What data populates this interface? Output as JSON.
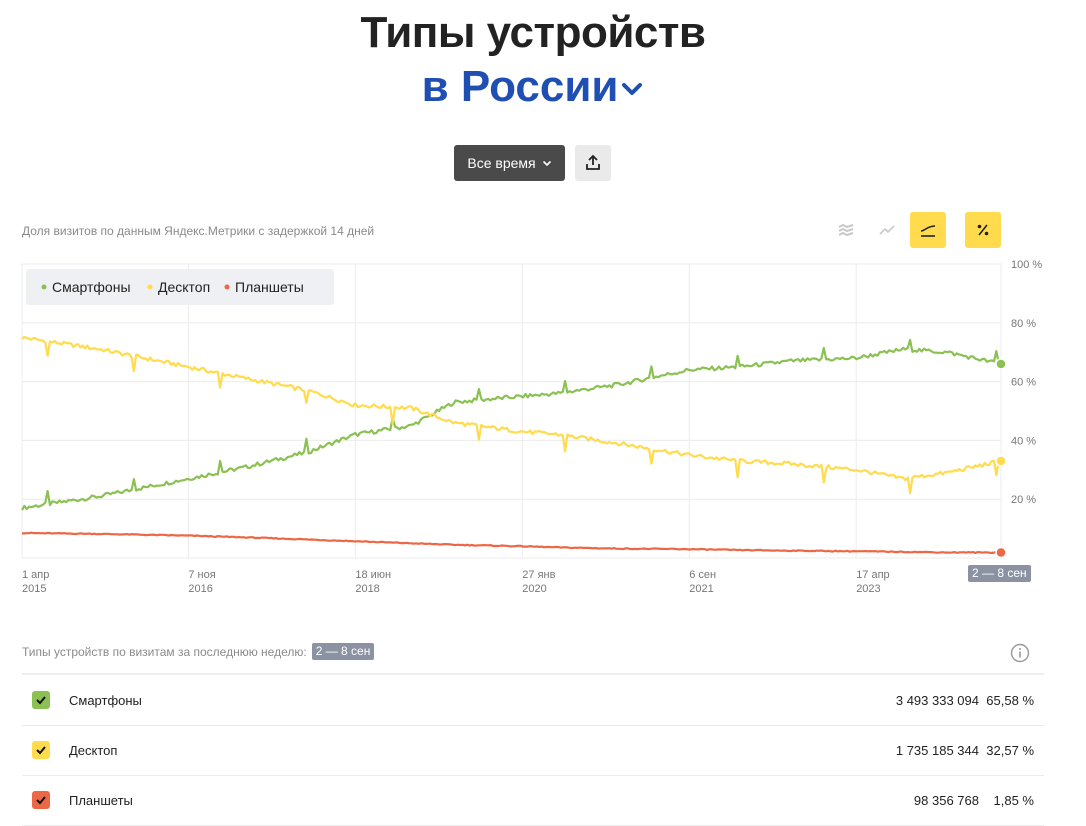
{
  "header": {
    "title": "Типы устройств",
    "region": "в России"
  },
  "toolbar": {
    "period_label": "Все время"
  },
  "chart_note": "Доля визитов по данным Яндекс.Метрики с задержкой 14 дней",
  "colors": {
    "smartphones": "#8bc152",
    "desktop": "#ffdb4d",
    "tablets": "#ec6745",
    "accent": "#ffdb4d",
    "title_blue": "#1f4fb3"
  },
  "chart_data": {
    "type": "line",
    "x_tick_labels": [
      {
        "day": "1 апр",
        "year": "2015"
      },
      {
        "day": "7 ноя",
        "year": "2016"
      },
      {
        "day": "18 июн",
        "year": "2018"
      },
      {
        "day": "27 янв",
        "year": "2020"
      },
      {
        "day": "6 сен",
        "year": "2021"
      },
      {
        "day": "17 апр",
        "year": "2023"
      }
    ],
    "x_range": [
      "2015-04-01",
      "2024-09-08"
    ],
    "y_tick_labels": [
      "100 %",
      "80 %",
      "60 %",
      "40 %",
      "20 %"
    ],
    "ylim": [
      0,
      100
    ],
    "grid": true,
    "legend_position": "top-left",
    "last_week_label": "2 — 8 сен",
    "series": [
      {
        "name": "Смартфоны",
        "color": "#8bc152",
        "x": [
          "2015-04-01",
          "2016-01-01",
          "2016-11-07",
          "2017-06-01",
          "2018-01-01",
          "2018-06-18",
          "2019-01-01",
          "2019-06-01",
          "2020-01-27",
          "2020-06-01",
          "2021-01-01",
          "2021-09-06",
          "2022-03-01",
          "2022-09-01",
          "2023-04-17",
          "2023-10-01",
          "2024-03-01",
          "2024-09-08"
        ],
        "values": [
          17,
          21,
          27,
          31,
          36,
          42,
          45,
          53,
          55,
          56,
          59,
          64,
          65,
          67,
          68,
          71,
          70,
          66
        ]
      },
      {
        "name": "Десктоп",
        "color": "#ffdb4d",
        "x": [
          "2015-04-01",
          "2016-01-01",
          "2016-11-07",
          "2017-06-01",
          "2018-01-01",
          "2018-06-18",
          "2019-01-01",
          "2019-06-01",
          "2020-01-27",
          "2020-06-01",
          "2021-01-01",
          "2021-09-06",
          "2022-03-01",
          "2022-09-01",
          "2023-04-17",
          "2023-10-01",
          "2024-03-01",
          "2024-09-08"
        ],
        "values": [
          75,
          71,
          65,
          61,
          57,
          52,
          51,
          46,
          43,
          42,
          39,
          35,
          33,
          32,
          30,
          27,
          29,
          33
        ]
      },
      {
        "name": "Планшеты",
        "color": "#ec6745",
        "x": [
          "2015-04-01",
          "2016-01-01",
          "2016-11-07",
          "2017-06-01",
          "2018-01-01",
          "2018-06-18",
          "2019-01-01",
          "2019-06-01",
          "2020-01-27",
          "2020-06-01",
          "2021-01-01",
          "2021-09-06",
          "2022-03-01",
          "2022-09-01",
          "2023-04-17",
          "2023-10-01",
          "2024-03-01",
          "2024-09-08"
        ],
        "values": [
          8.5,
          8.2,
          7.6,
          7,
          6.3,
          5.7,
          5,
          4.5,
          4,
          3.6,
          3.2,
          3,
          2.7,
          2.5,
          2.3,
          2.1,
          1.9,
          1.85
        ]
      }
    ]
  },
  "summary": {
    "caption": "Типы устройств по визитам за последнюю неделю:",
    "period": "2 — 8 сен",
    "rows": [
      {
        "name": "Смартфоны",
        "visits": "3 493 333 094",
        "share": "65,58 %"
      },
      {
        "name": "Десктоп",
        "visits": "1 735 185 344",
        "share": "32,57 %"
      },
      {
        "name": "Планшеты",
        "visits": "98 356 768",
        "share": "1,85 %"
      }
    ]
  }
}
